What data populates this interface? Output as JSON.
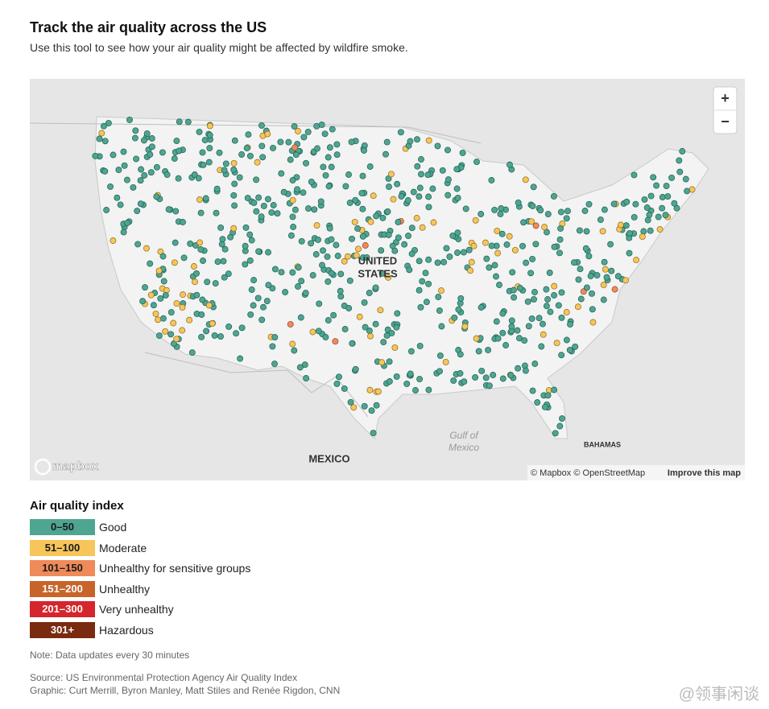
{
  "header": {
    "title": "Track the air quality across the US",
    "subtitle": "Use this tool to see how your air quality might be affected by wildfire smoke."
  },
  "map": {
    "labels": {
      "united_states": [
        "UNITED",
        "STATES"
      ],
      "mexico": "MEXICO",
      "gulf": [
        "Gulf of",
        "Mexico"
      ],
      "bahamas": "BAHAMAS"
    },
    "controls": {
      "zoom_in": "+",
      "zoom_out": "−"
    },
    "attribution": {
      "logo": "mapbox",
      "credits": "© Mapbox © OpenStreetMap",
      "improve": "Improve this map"
    }
  },
  "legend": {
    "title": "Air quality index",
    "items": [
      {
        "range": "0–50",
        "label": "Good",
        "color": "#4ea592",
        "text_color": "#1a1a1a"
      },
      {
        "range": "51–100",
        "label": "Moderate",
        "color": "#f7c55a",
        "text_color": "#1a1a1a"
      },
      {
        "range": "101–150",
        "label": "Unhealthy for sensitive groups",
        "color": "#ef8a5a",
        "text_color": "#1a1a1a"
      },
      {
        "range": "151–200",
        "label": "Unhealthy",
        "color": "#c8642a",
        "text_color": "#ffffff"
      },
      {
        "range": "201–300",
        "label": "Very unhealthy",
        "color": "#d4262c",
        "text_color": "#ffffff"
      },
      {
        "range": "301+",
        "label": "Hazardous",
        "color": "#7a2a0e",
        "text_color": "#ffffff"
      }
    ]
  },
  "note": "Note: Data updates every 30 minutes",
  "source": "Source: US Environmental Protection Agency Air Quality Index",
  "graphic": "Graphic: Curt Merrill, Byron Manley, Matt Stiles and Renée Rigdon, CNN",
  "watermark": "@领事闲谈"
}
